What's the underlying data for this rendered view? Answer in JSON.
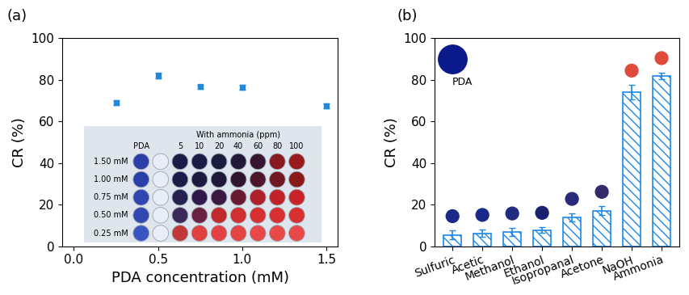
{
  "chart_data": [
    {
      "type": "scatter",
      "panel_label": "(a)",
      "x_label": "PDA concentration (mM)",
      "y_label": "CR (%)",
      "x": [
        0.25,
        0.5,
        0.75,
        1.0,
        1.5
      ],
      "values": [
        69.2,
        82.0,
        76.7,
        76.6,
        67.6
      ],
      "errors": [
        1.2,
        1.3,
        1.1,
        1.2,
        1.1
      ],
      "color": "#1e88e5",
      "marker": "square",
      "xlim": [
        -0.07,
        1.57
      ],
      "xticks": [
        {
          "value": 0,
          "label": "0.0"
        },
        0.5,
        {
          "value": 1,
          "label": "1.0"
        },
        1.5
      ],
      "ylim": [
        0,
        100
      ],
      "yticks": [
        0,
        20,
        40,
        60,
        80,
        100
      ],
      "inset": {
        "reference_label": "PDA",
        "header": "With ammonia (ppm)",
        "column_labels": [
          "5",
          "10",
          "20",
          "40",
          "60",
          "80",
          "100"
        ],
        "row_labels": [
          "1.50 mM",
          "1.00 mM",
          "0.75 mM",
          "0.50 mM",
          "0.25 mM"
        ],
        "well_colors": [
          [
            "#2a3fa8",
            "#e8eef5",
            "#1c1c48",
            "#1c1c45",
            "#1c1b40",
            "#22193a",
            "#3a1530",
            "#8a1a22",
            "#9a1a1c"
          ],
          [
            "#2a3fa8",
            "#e8eef5",
            "#1c1c48",
            "#1c1a40",
            "#201838",
            "#30152e",
            "#4a1628",
            "#721820",
            "#8a1a1a"
          ],
          [
            "#2f45b0",
            "#e8eef5",
            "#262050",
            "#30194a",
            "#3a1840",
            "#6a1a30",
            "#b02028",
            "#c02228",
            "#c82428"
          ],
          [
            "#3048b0",
            "#e8eef5",
            "#3a2a5a",
            "#6a2040",
            "#c02a2a",
            "#d03030",
            "#d83030",
            "#d83030",
            "#d83030"
          ],
          [
            "#3a55c0",
            "#e8eef5",
            "#c03838",
            "#e04040",
            "#e44242",
            "#e44444",
            "#e84848",
            "#e84848",
            "#e84848"
          ]
        ]
      }
    },
    {
      "type": "bar",
      "panel_label": "(b)",
      "y_label": "CR (%)",
      "categories": [
        "Sulfuric",
        "Acetic",
        "Methanol",
        "Ethanol",
        "Isopropanal",
        "Acetone",
        "NaOH",
        "Ammonia"
      ],
      "values": [
        5.5,
        6.3,
        6.8,
        7.8,
        13.8,
        17.2,
        74.0,
        82.0
      ],
      "errors": [
        2.0,
        1.8,
        2.0,
        1.3,
        2.0,
        2.0,
        3.5,
        1.5
      ],
      "color": "#1e88e5",
      "swatches": {
        "colors": [
          "#1a2a8a",
          "#1a2a8a",
          "#1f2a80",
          "#182070",
          "#2a2a7a",
          "#352a6a",
          "#e04a3a",
          "#e04a3a"
        ],
        "reference_label": "PDA",
        "reference_color": "#0a1a8a"
      },
      "ylim": [
        0,
        100
      ],
      "yticks": [
        0,
        20,
        40,
        60,
        80,
        100
      ]
    }
  ]
}
